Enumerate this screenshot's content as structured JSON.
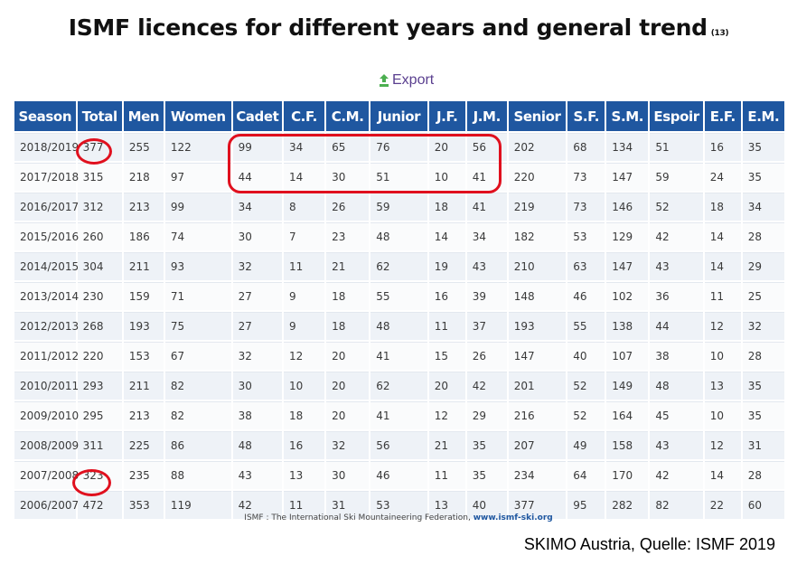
{
  "title": "ISMF licences for different years and general trend",
  "title_ref": "(13)",
  "export_label": "Export",
  "columns": [
    "Season",
    "Total",
    "Men",
    "Women",
    "Cadet",
    "C.F.",
    "C.M.",
    "Junior",
    "J.F.",
    "J.M.",
    "Senior",
    "S.F.",
    "S.M.",
    "Espoir",
    "E.F.",
    "E.M."
  ],
  "rows": [
    [
      "2018/2019",
      "377",
      "255",
      "122",
      "99",
      "34",
      "65",
      "76",
      "20",
      "56",
      "202",
      "68",
      "134",
      "51",
      "16",
      "35"
    ],
    [
      "2017/2018",
      "315",
      "218",
      "97",
      "44",
      "14",
      "30",
      "51",
      "10",
      "41",
      "220",
      "73",
      "147",
      "59",
      "24",
      "35"
    ],
    [
      "2016/2017",
      "312",
      "213",
      "99",
      "34",
      "8",
      "26",
      "59",
      "18",
      "41",
      "219",
      "73",
      "146",
      "52",
      "18",
      "34"
    ],
    [
      "2015/2016",
      "260",
      "186",
      "74",
      "30",
      "7",
      "23",
      "48",
      "14",
      "34",
      "182",
      "53",
      "129",
      "42",
      "14",
      "28"
    ],
    [
      "2014/2015",
      "304",
      "211",
      "93",
      "32",
      "11",
      "21",
      "62",
      "19",
      "43",
      "210",
      "63",
      "147",
      "43",
      "14",
      "29"
    ],
    [
      "2013/2014",
      "230",
      "159",
      "71",
      "27",
      "9",
      "18",
      "55",
      "16",
      "39",
      "148",
      "46",
      "102",
      "36",
      "11",
      "25"
    ],
    [
      "2012/2013",
      "268",
      "193",
      "75",
      "27",
      "9",
      "18",
      "48",
      "11",
      "37",
      "193",
      "55",
      "138",
      "44",
      "12",
      "32"
    ],
    [
      "2011/2012",
      "220",
      "153",
      "67",
      "32",
      "12",
      "20",
      "41",
      "15",
      "26",
      "147",
      "40",
      "107",
      "38",
      "10",
      "28"
    ],
    [
      "2010/2011",
      "293",
      "211",
      "82",
      "30",
      "10",
      "20",
      "62",
      "20",
      "42",
      "201",
      "52",
      "149",
      "48",
      "13",
      "35"
    ],
    [
      "2009/2010",
      "295",
      "213",
      "82",
      "38",
      "18",
      "20",
      "41",
      "12",
      "29",
      "216",
      "52",
      "164",
      "45",
      "10",
      "35"
    ],
    [
      "2008/2009",
      "311",
      "225",
      "86",
      "48",
      "16",
      "32",
      "56",
      "21",
      "35",
      "207",
      "49",
      "158",
      "43",
      "12",
      "31"
    ],
    [
      "2007/2008",
      "323",
      "235",
      "88",
      "43",
      "13",
      "30",
      "46",
      "11",
      "35",
      "234",
      "64",
      "170",
      "42",
      "14",
      "28"
    ],
    [
      "2006/2007",
      "472",
      "353",
      "119",
      "42",
      "11",
      "31",
      "53",
      "13",
      "40",
      "377",
      "95",
      "282",
      "82",
      "22",
      "60"
    ]
  ],
  "footer_text": "ISMF : The International Ski Mountaineering Federation, ",
  "footer_link": "www.ismf-ski.org",
  "source_note": "SKIMO Austria, Quelle: ISMF 2019",
  "colors": {
    "header_bg": "#1f57a0",
    "highlight": "#e0101e",
    "export": "#5a3f8f"
  }
}
